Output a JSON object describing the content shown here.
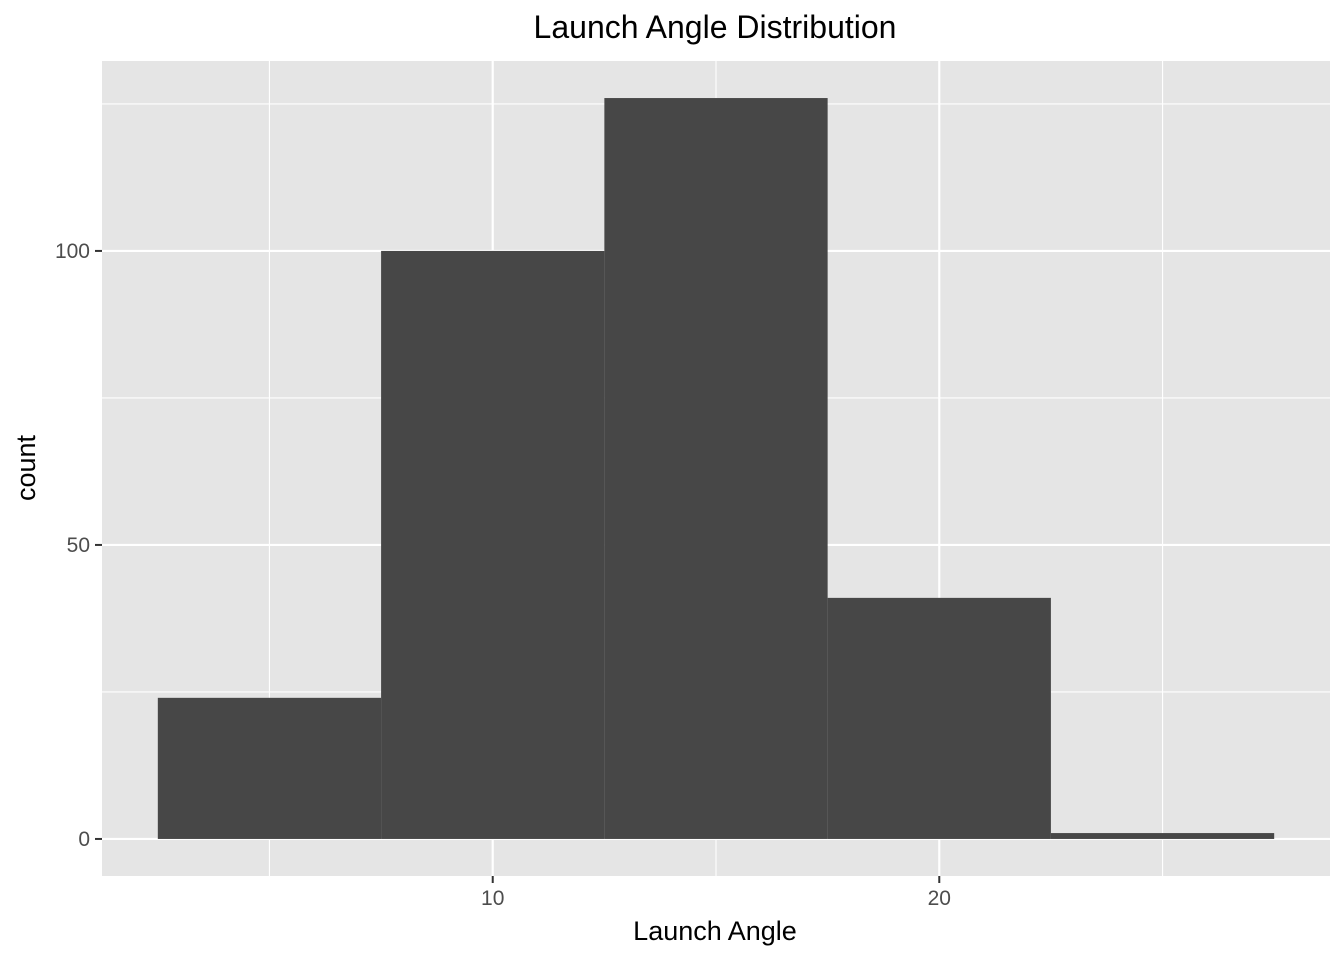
{
  "chart_data": {
    "type": "bar",
    "title": "Launch Angle Distribution",
    "xlabel": "Launch Angle",
    "ylabel": "count",
    "bins": [
      {
        "start": 2.5,
        "end": 7.5,
        "count": 24
      },
      {
        "start": 7.5,
        "end": 12.5,
        "count": 100
      },
      {
        "start": 12.5,
        "end": 17.5,
        "count": 126
      },
      {
        "start": 17.5,
        "end": 22.5,
        "count": 41
      },
      {
        "start": 22.5,
        "end": 27.5,
        "count": 1
      }
    ],
    "xlim": [
      1.25,
      28.75
    ],
    "ylim": [
      -6.3,
      132.3
    ],
    "x_major_ticks": [
      10,
      20
    ],
    "x_major_tick_labels": [
      "10",
      "20"
    ],
    "x_minor_ticks": [
      5,
      15,
      25
    ],
    "y_major_ticks": [
      0,
      50,
      100
    ],
    "y_major_tick_labels": [
      "0",
      "50",
      "100"
    ],
    "y_minor_ticks": [
      25,
      75,
      125
    ],
    "grid": true,
    "colors": {
      "panel_background": "#e5e5e5",
      "grid": "#ffffff",
      "bar_fill": "#474747",
      "tick_label": "#4d4d4d",
      "tick_mark": "#333333"
    }
  }
}
